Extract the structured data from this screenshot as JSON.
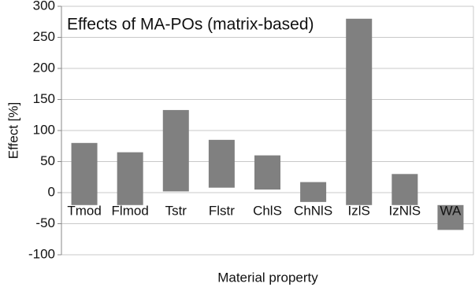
{
  "chart_data": {
    "type": "floating-bar",
    "title": "Effects of MA-POs (matrix-based)",
    "x_label": "Material property",
    "y_label": "Effect [%]",
    "categories": [
      "Tmod",
      "Flmod",
      "Tstr",
      "Flstr",
      "ChlS",
      "ChNlS",
      "IzlS",
      "IzNlS",
      "WA"
    ],
    "low": [
      -20,
      -20,
      2,
      8,
      5,
      -15,
      -20,
      -20,
      -60
    ],
    "high": [
      80,
      65,
      133,
      85,
      60,
      17,
      280,
      30,
      -20
    ],
    "color": "#808080",
    "ylim": [
      -100,
      300
    ],
    "yticks": [
      -100,
      -50,
      0,
      50,
      100,
      150,
      200,
      250,
      300
    ],
    "grid": true
  }
}
